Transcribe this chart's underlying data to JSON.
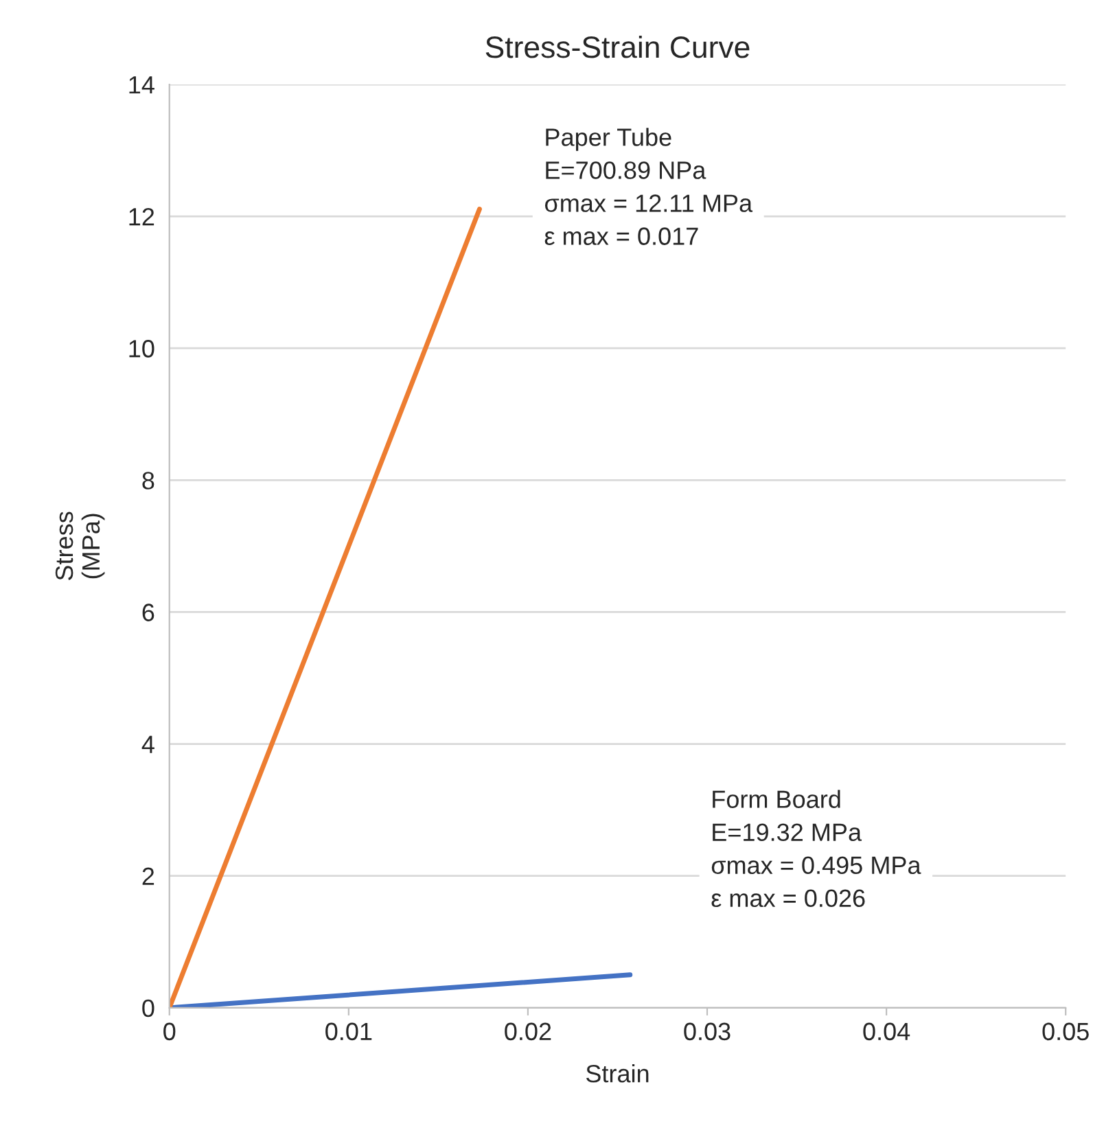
{
  "chart_data": {
    "type": "line",
    "title": "Stress-Strain Curve",
    "xlabel": "Strain",
    "ylabel": "Stress\n(MPa)",
    "series": [
      {
        "color": "#4472c4",
        "x": [
          0,
          0.0257
        ],
        "values": [
          0,
          0.5
        ]
      },
      {
        "color": "#ed7d31",
        "x": [
          0,
          0.0173
        ],
        "values": [
          0,
          12.11
        ]
      }
    ],
    "xlim": [
      0,
      0.05
    ],
    "xticks": [
      0,
      0.01,
      0.02,
      0.03,
      0.04,
      0.05
    ],
    "ylim": [
      0,
      14
    ],
    "yticks": [
      0,
      2,
      4,
      6,
      8,
      10,
      12,
      14
    ],
    "grid": "y",
    "marker": "none",
    "line_style": "solid",
    "legend": false,
    "annotations": [
      "Paper Tube\nE=700.89 NPa\nσmax = 12.11 MPa\nε max = 0.017",
      "Form Board\nE=19.32 MPa\nσmax = 0.495 MPa\nε max = 0.026"
    ]
  }
}
